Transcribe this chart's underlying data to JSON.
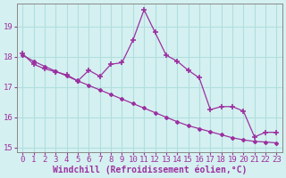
{
  "x": [
    0,
    1,
    2,
    3,
    4,
    5,
    6,
    7,
    8,
    9,
    10,
    11,
    12,
    13,
    14,
    15,
    16,
    17,
    18,
    19,
    20,
    21,
    22,
    23
  ],
  "y_windchill": [
    18.1,
    17.75,
    17.6,
    17.5,
    17.4,
    17.2,
    17.55,
    17.35,
    17.75,
    17.8,
    18.55,
    19.55,
    18.8,
    18.05,
    17.85,
    17.55,
    17.3,
    16.25,
    16.35,
    16.35,
    16.2,
    15.35,
    15.5,
    15.5
  ],
  "y_trend": [
    18.05,
    17.85,
    17.68,
    17.52,
    17.36,
    17.2,
    17.05,
    16.9,
    16.75,
    16.6,
    16.45,
    16.3,
    16.15,
    16.0,
    15.85,
    15.72,
    15.62,
    15.52,
    15.42,
    15.32,
    15.25,
    15.2,
    15.18,
    15.15
  ],
  "line_color": "#9b30a0",
  "bg_color": "#d5f0f0",
  "grid_color": "#b0dede",
  "ylabel_ticks": [
    15,
    16,
    17,
    18,
    19
  ],
  "xlabel_ticks": [
    0,
    1,
    2,
    3,
    4,
    5,
    6,
    7,
    8,
    9,
    10,
    11,
    12,
    13,
    14,
    15,
    16,
    17,
    18,
    19,
    20,
    21,
    22,
    23
  ],
  "xlabel": "Windchill (Refroidissement éolien,°C)",
  "ylim": [
    14.85,
    19.75
  ],
  "xlim": [
    -0.5,
    23.5
  ],
  "tick_fontsize": 6.5,
  "label_fontsize": 7
}
